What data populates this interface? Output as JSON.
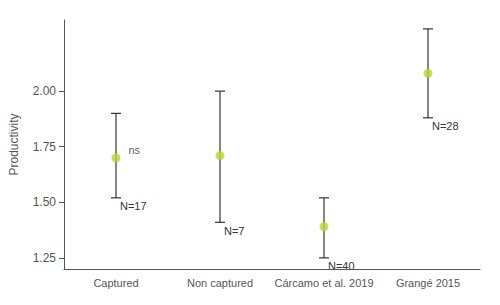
{
  "chart_data": {
    "type": "errorbar",
    "categories": [
      "Captured",
      "Non captured",
      "Cárcamo et al. 2019",
      "Grangé 2015"
    ],
    "values": [
      1.7,
      1.71,
      1.39,
      2.08
    ],
    "upper_errors": [
      0.2,
      0.29,
      0.13,
      0.2
    ],
    "lower_errors": [
      0.18,
      0.3,
      0.14,
      0.2
    ],
    "point_labels": [
      "N=17",
      "N=7",
      "N=40",
      "N=28"
    ],
    "annotations": [
      {
        "category": "Captured",
        "text": "ns"
      }
    ],
    "ylabel": "Productivity",
    "ylim": [
      1.2,
      2.32
    ],
    "yticks": [
      1.25,
      {
        "value": 1.5,
        "label": "1.50"
      },
      1.75,
      {
        "value": 2.0,
        "label": "2.00"
      }
    ],
    "grid": false
  }
}
